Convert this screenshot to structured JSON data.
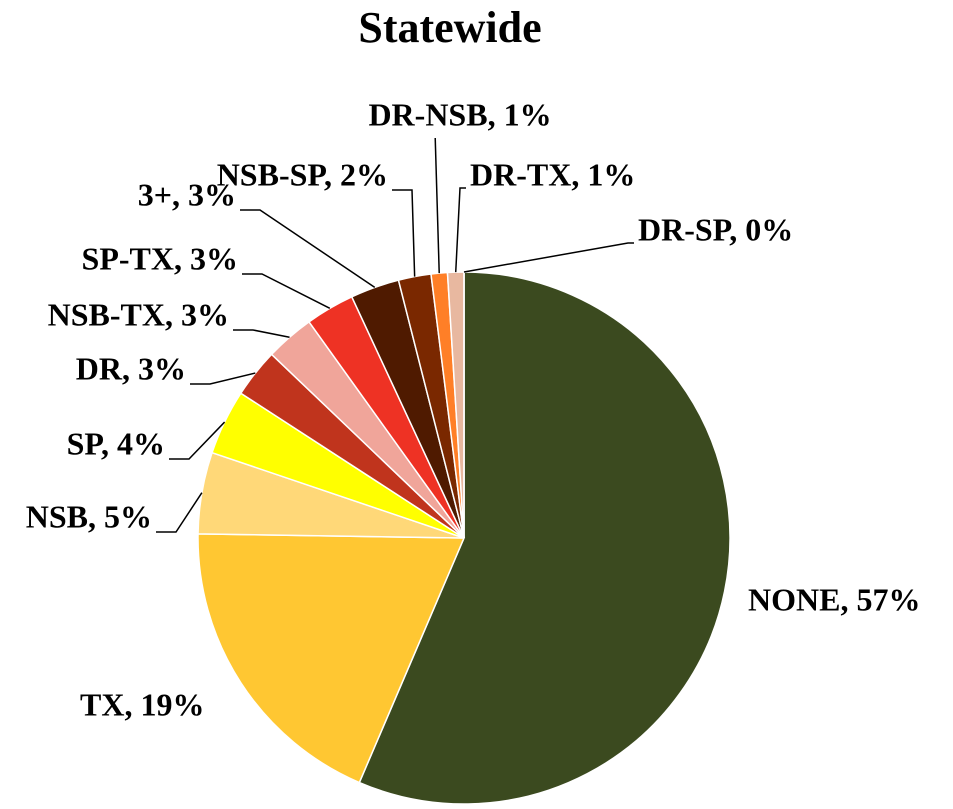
{
  "chart_data": {
    "type": "pie",
    "title": "Statewide",
    "categories": [
      "NONE",
      "TX",
      "NSB",
      "SP",
      "DR",
      "NSB-TX",
      "SP-TX",
      "3+",
      "NSB-SP",
      "DR-NSB",
      "DR-TX",
      "DR-SP"
    ],
    "values": [
      57,
      19,
      5,
      4,
      3,
      3,
      3,
      3,
      2,
      1,
      1,
      0
    ],
    "value_labels": [
      "NONE, 57%",
      "TX, 19%",
      "NSB, 5%",
      "SP, 4%",
      "DR, 3%",
      "NSB-TX, 3%",
      "SP-TX, 3%",
      "3+, 3%",
      "NSB-SP, 2%",
      "DR-NSB, 1%",
      "DR-TX, 1%",
      "DR-SP, 0%"
    ],
    "colors": [
      "#3b4a1f",
      "#ffc732",
      "#ffd878",
      "#ffff00",
      "#c0341d",
      "#f0a59a",
      "#ee3224",
      "#4f1a00",
      "#7a2800",
      "#ff7f27",
      "#e8b8a0",
      "#d8c0a8"
    ]
  }
}
